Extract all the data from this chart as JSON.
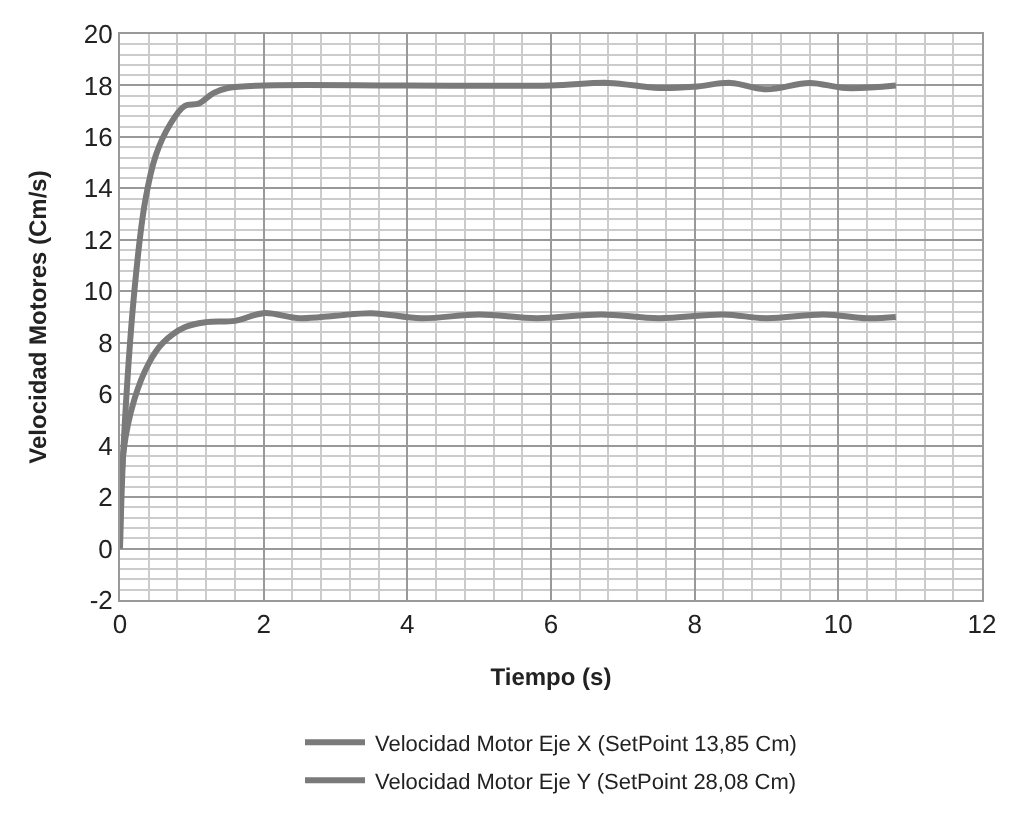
{
  "chart_data": {
    "type": "line",
    "xlabel": "Tiempo (s)",
    "ylabel": "Velocidad Motores (Cm/s)",
    "xlim": [
      0,
      12
    ],
    "ylim": [
      -2,
      20
    ],
    "xticks": [
      0,
      2,
      4,
      6,
      8,
      10,
      12
    ],
    "yticks": [
      -2,
      0,
      2,
      4,
      6,
      8,
      10,
      12,
      14,
      16,
      18,
      20
    ],
    "grid": true,
    "legend": "bottom",
    "marker": "none",
    "line_style": "solid",
    "series": [
      {
        "name": "Velocidad Motor Eje X (SetPoint 13,85 Cm)",
        "color": "#7a7a7a",
        "x": [
          0,
          0.05,
          0.2,
          0.35,
          0.5,
          0.7,
          0.9,
          1.1,
          1.3,
          1.5,
          2,
          4,
          6,
          6.8,
          7.5,
          8,
          8.5,
          9,
          9.6,
          10.1,
          10.8
        ],
        "values": [
          0,
          4,
          10,
          13.5,
          15.3,
          16.5,
          17.2,
          17.3,
          17.7,
          17.9,
          18,
          18,
          18,
          18.1,
          17.9,
          17.95,
          18.1,
          17.85,
          18.1,
          17.9,
          18
        ]
      },
      {
        "name": "Velocidad Motor Eje Y (SetPoint 28,08 Cm)",
        "color": "#7a7a7a",
        "x": [
          0,
          0.05,
          0.2,
          0.4,
          0.6,
          0.9,
          1.2,
          1.6,
          2,
          2.5,
          3,
          3.5,
          4.2,
          5,
          5.8,
          6.7,
          7.5,
          8.4,
          9,
          9.8,
          10.4,
          10.8
        ],
        "values": [
          0,
          3.8,
          5.8,
          7.2,
          8,
          8.6,
          8.8,
          8.85,
          9.15,
          8.95,
          9.05,
          9.15,
          8.95,
          9.1,
          8.95,
          9.1,
          8.95,
          9.1,
          8.95,
          9.1,
          8.95,
          9
        ]
      }
    ]
  }
}
